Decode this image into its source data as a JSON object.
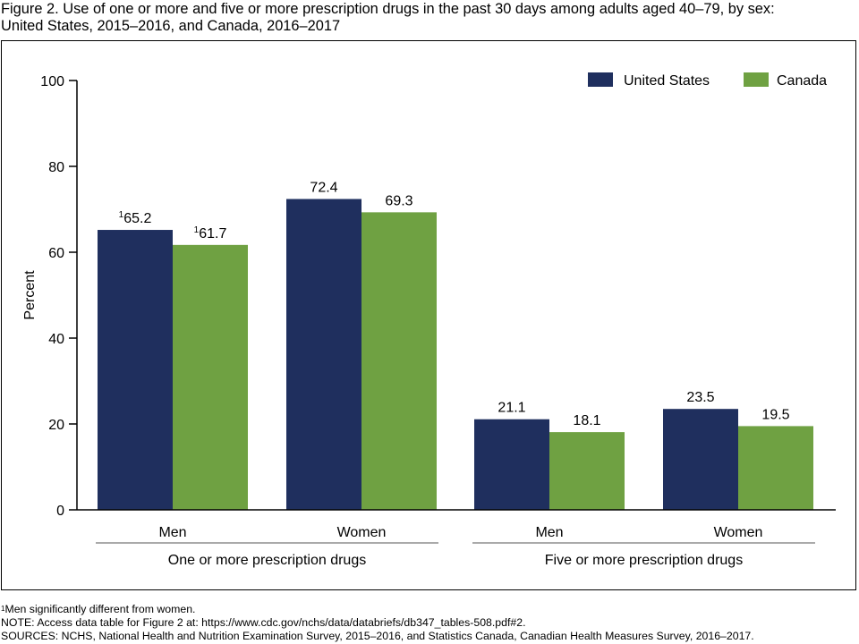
{
  "figure": {
    "title_line1": "Figure 2. Use of one or more and five or more prescription drugs in the past 30 days among adults aged 40–79, by sex:",
    "title_line2": "United States, 2015–2016, and Canada, 2016–2017"
  },
  "chart_data": {
    "type": "bar",
    "ylabel": "Percent",
    "ylim": [
      0,
      100
    ],
    "yticks": [
      0,
      20,
      40,
      60,
      80,
      100
    ],
    "grid": false,
    "legend_position": "top-right",
    "colors": {
      "United States": "#1f2f5e",
      "Canada": "#6fa142"
    },
    "groups": [
      {
        "label": "One or more prescription drugs",
        "categories": [
          {
            "label": "Men",
            "values": [
              65.2,
              61.7
            ],
            "value_labels": [
              "65.2",
              "61.7"
            ],
            "footnote": [
              "1",
              "1"
            ]
          },
          {
            "label": "Women",
            "values": [
              72.4,
              69.3
            ],
            "value_labels": [
              "72.4",
              "69.3"
            ],
            "footnote": [
              "",
              ""
            ]
          }
        ]
      },
      {
        "label": "Five or more prescription drugs",
        "categories": [
          {
            "label": "Men",
            "values": [
              21.1,
              18.1
            ],
            "value_labels": [
              "21.1",
              "18.1"
            ],
            "footnote": [
              "",
              ""
            ]
          },
          {
            "label": "Women",
            "values": [
              23.5,
              19.5
            ],
            "value_labels": [
              "23.5",
              "19.5"
            ],
            "footnote": [
              "",
              ""
            ]
          }
        ]
      }
    ],
    "series": [
      {
        "name": "United States"
      },
      {
        "name": "Canada"
      }
    ]
  },
  "notes": {
    "footnote_marker": "1",
    "footnote_text": "Men significantly different from women.",
    "note": "NOTE: Access data table for Figure 2 at: https://www.cdc.gov/nchs/data/databriefs/db347_tables-508.pdf#2.",
    "sources": "SOURCES: NCHS, National Health and Nutrition Examination Survey, 2015–2016, and Statistics Canada, Canadian Health Measures Survey, 2016–2017."
  }
}
